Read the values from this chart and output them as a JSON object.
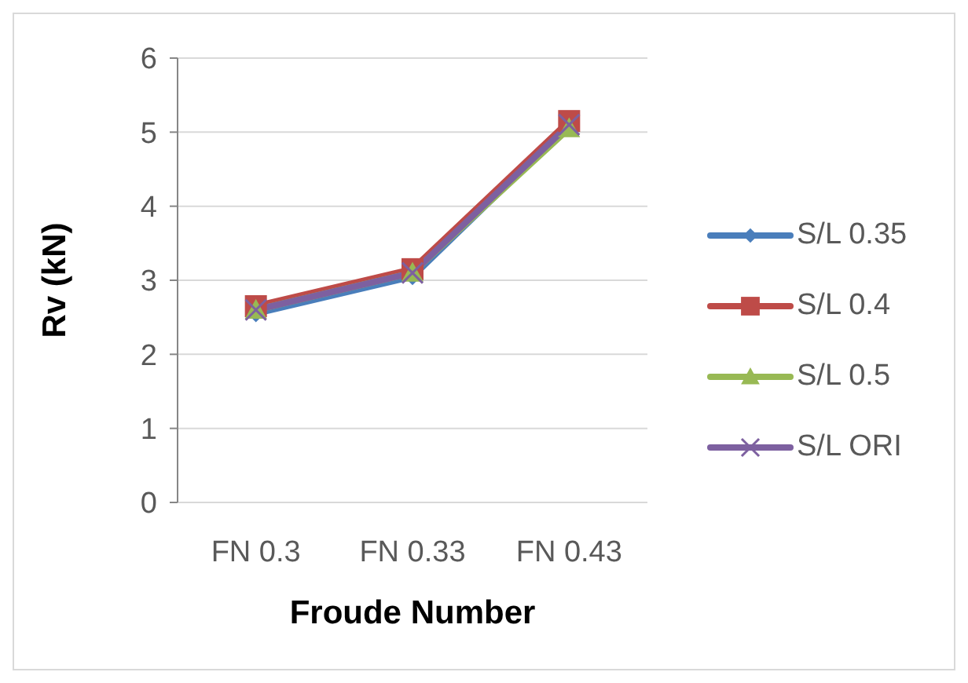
{
  "chart_data": {
    "type": "line",
    "xlabel": "Froude Number",
    "ylabel": "Rv (kN)",
    "categories": [
      "FN 0.3",
      "FN 0.33",
      "FN 0.43"
    ],
    "series": [
      {
        "name": "S/L 0.35",
        "color": "#4a7ebb",
        "marker": "diamond",
        "values": [
          2.55,
          3.05,
          5.1
        ]
      },
      {
        "name": "S/L 0.4",
        "color": "#be4b48",
        "marker": "square",
        "values": [
          2.65,
          3.15,
          5.15
        ]
      },
      {
        "name": "S/L 0.5",
        "color": "#98b954",
        "marker": "triangle",
        "values": [
          2.6,
          3.1,
          5.05
        ]
      },
      {
        "name": "S/L ORI",
        "color": "#7d60a0",
        "marker": "cross",
        "values": [
          2.6,
          3.1,
          5.1
        ]
      }
    ],
    "ylim": [
      0,
      6
    ],
    "yticks": [
      0,
      1,
      2,
      3,
      4,
      5,
      6
    ],
    "grid": "y",
    "legend": "right",
    "line_style": "solid"
  }
}
